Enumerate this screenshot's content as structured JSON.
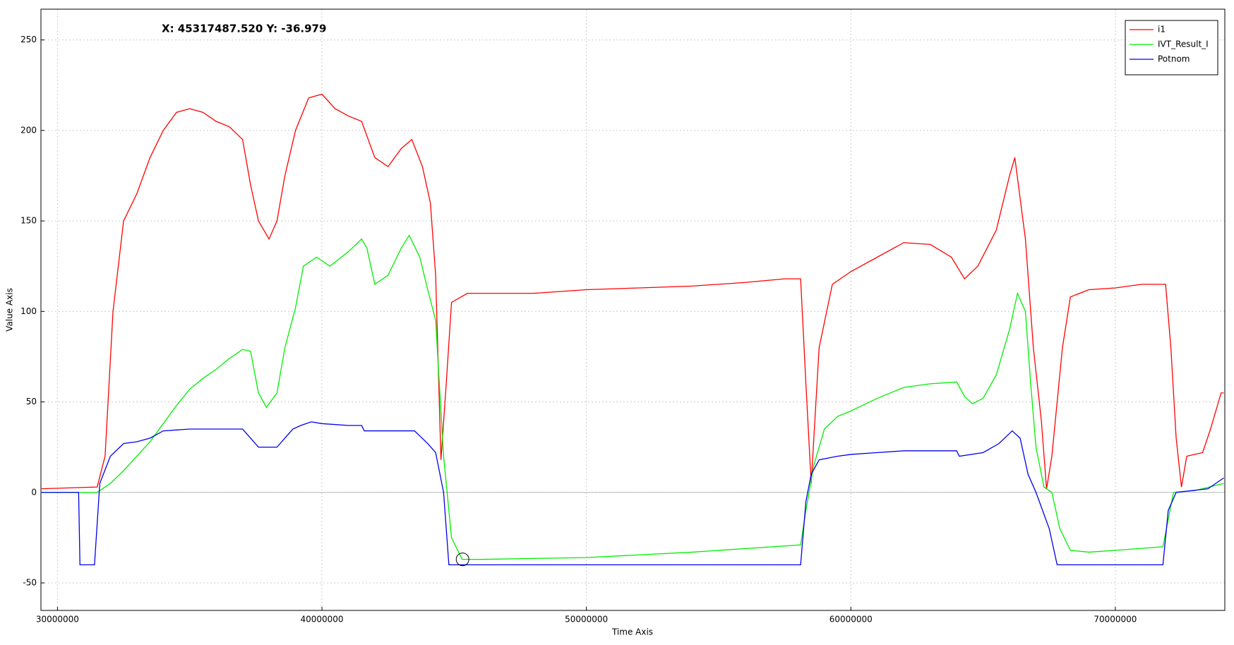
{
  "chart_data": {
    "type": "line",
    "annotation": "X: 45317487.520 Y: -36.979",
    "cursor": {
      "x": 45317487.52,
      "y": -36.979
    },
    "x_label": "Time Axis",
    "y_label": "Value Axis",
    "xlim": [
      29375000,
      74140000
    ],
    "ylim": [
      -65.2,
      267
    ],
    "xticks": [
      30000000,
      40000000,
      50000000,
      60000000,
      70000000
    ],
    "yticks": [
      -50,
      0,
      50,
      100,
      150,
      200,
      250
    ],
    "grid": true,
    "zero_line": true,
    "legend": "top-right",
    "series": [
      {
        "name": "i1",
        "color": "#ff0000",
        "x": [
          29400000,
          31500000,
          31800000,
          32100000,
          32500000,
          33000000,
          33500000,
          34000000,
          34500000,
          35000000,
          35500000,
          36000000,
          36500000,
          37000000,
          37300000,
          37600000,
          38000000,
          38300000,
          38600000,
          39000000,
          39500000,
          40000000,
          40500000,
          41000000,
          41500000,
          42000000,
          42500000,
          43000000,
          43400000,
          43800000,
          44100000,
          44300000,
          44500000,
          44700000,
          44900000,
          45500000,
          47000000,
          48000000,
          50000000,
          52000000,
          54000000,
          56000000,
          57500000,
          58100000,
          58300000,
          58500000,
          58800000,
          59300000,
          60000000,
          61000000,
          62000000,
          63000000,
          63800000,
          64300000,
          64800000,
          65500000,
          66000000,
          66200000,
          66600000,
          66900000,
          67200000,
          67400000,
          67600000,
          68000000,
          68300000,
          69000000,
          70000000,
          71000000,
          71900000,
          72100000,
          72300000,
          72500000,
          72700000,
          73300000,
          73600000,
          74000000,
          74100000
        ],
        "values": [
          2,
          3,
          20,
          100,
          150,
          165,
          185,
          200,
          210,
          212,
          210,
          205,
          202,
          195,
          170,
          150,
          140,
          150,
          175,
          200,
          218,
          220,
          212,
          208,
          205,
          185,
          180,
          190,
          195,
          180,
          160,
          120,
          18,
          60,
          105,
          110,
          110,
          110,
          112,
          113,
          114,
          116,
          118,
          118,
          60,
          5,
          80,
          115,
          122,
          130,
          138,
          137,
          130,
          118,
          125,
          145,
          175,
          185,
          140,
          80,
          40,
          2,
          20,
          80,
          108,
          112,
          113,
          115,
          115,
          80,
          30,
          3,
          20,
          22,
          35,
          55,
          55
        ]
      },
      {
        "name": "IVT_Result_I",
        "color": "#00ee00",
        "x": [
          29400000,
          31500000,
          32000000,
          32500000,
          33000000,
          33500000,
          34000000,
          34500000,
          35000000,
          35500000,
          36000000,
          36500000,
          37000000,
          37300000,
          37600000,
          37900000,
          38300000,
          38600000,
          39000000,
          39300000,
          39800000,
          40300000,
          41000000,
          41500000,
          41700000,
          42000000,
          42500000,
          43000000,
          43300000,
          43700000,
          44000000,
          44300000,
          44600000,
          44900000,
          45300000,
          46000000,
          50000000,
          54000000,
          58100000,
          58300000,
          58600000,
          59000000,
          59500000,
          60000000,
          61000000,
          62000000,
          63000000,
          64000000,
          64300000,
          64600000,
          65000000,
          65500000,
          66000000,
          66300000,
          66600000,
          66800000,
          67000000,
          67300000,
          67600000,
          67900000,
          68300000,
          69000000,
          70000000,
          71800000,
          72000000,
          72200000,
          73000000,
          74100000
        ],
        "values": [
          0,
          0,
          5,
          12,
          20,
          28,
          38,
          48,
          57,
          63,
          68,
          74,
          79,
          78,
          55,
          47,
          55,
          80,
          102,
          125,
          130,
          125,
          133,
          140,
          135,
          115,
          120,
          135,
          142,
          130,
          112,
          95,
          20,
          -25,
          -36.979,
          -37,
          -36,
          -33,
          -29,
          -10,
          15,
          35,
          42,
          45,
          52,
          58,
          60,
          61,
          53,
          49,
          52,
          65,
          90,
          110,
          100,
          60,
          25,
          3,
          0,
          -20,
          -32,
          -33,
          -32,
          -30,
          -15,
          0,
          1,
          5
        ]
      },
      {
        "name": "Potnom",
        "color": "#0000ee",
        "x": [
          29400000,
          30800000,
          30850000,
          31400000,
          31600000,
          32000000,
          32500000,
          33000000,
          33500000,
          34000000,
          35000000,
          37000000,
          37300000,
          37600000,
          38300000,
          38600000,
          38900000,
          39200000,
          39600000,
          40000000,
          41000000,
          41500000,
          41600000,
          42500000,
          43500000,
          44000000,
          44300000,
          44600000,
          44800000,
          58100000,
          58300000,
          58500000,
          58800000,
          59500000,
          60000000,
          61000000,
          62000000,
          64000000,
          64100000,
          65000000,
          65600000,
          66100000,
          66400000,
          66700000,
          67000000,
          67500000,
          67800000,
          71800000,
          72000000,
          72300000,
          73500000,
          74100000
        ],
        "values": [
          0,
          0,
          -40,
          -40,
          5,
          20,
          27,
          28,
          30,
          34,
          35,
          35,
          30,
          25,
          25,
          30,
          35,
          37,
          39,
          38,
          37,
          37,
          34,
          34,
          34,
          27,
          22,
          0,
          -40,
          -40,
          -5,
          10,
          18,
          20,
          21,
          22,
          23,
          23,
          20,
          22,
          27,
          34,
          30,
          10,
          0,
          -20,
          -40,
          -40,
          -10,
          0,
          2,
          8
        ]
      }
    ]
  }
}
